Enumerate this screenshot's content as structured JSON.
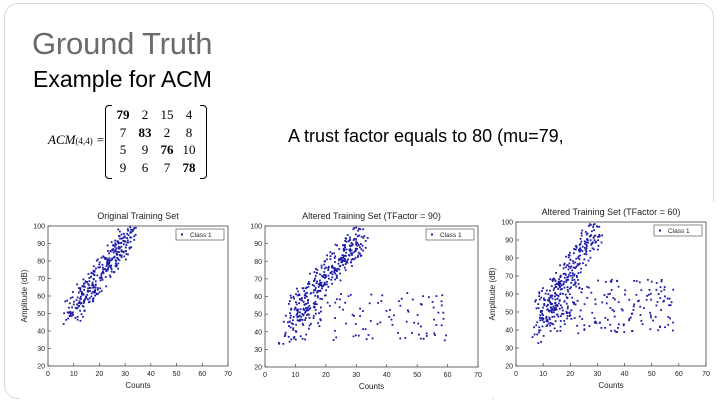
{
  "slide": {
    "title": "Ground Truth",
    "subtitle": "Example for ACM",
    "trust_text": "A trust factor equals to 80 (mu=79,"
  },
  "matrix": {
    "label": "ACM",
    "label_sub": "(4,4)",
    "equals": "=",
    "rows": [
      [
        "79",
        "2",
        "15",
        "4"
      ],
      [
        "7",
        "83",
        "2",
        "8"
      ],
      [
        "5",
        "9",
        "76",
        "10"
      ],
      [
        "9",
        "6",
        "7",
        "78"
      ]
    ]
  },
  "chart_data": [
    {
      "type": "scatter",
      "title": "Original Training Set",
      "xlabel": "Counts",
      "ylabel": "Amplitude (dB)",
      "xlim": [
        0,
        70
      ],
      "ylim": [
        20,
        100
      ],
      "xticks": [
        "0",
        "10",
        "20",
        "30",
        "40",
        "50",
        "60",
        "70"
      ],
      "yticks": [
        "20",
        "30",
        "40",
        "50",
        "60",
        "70",
        "80",
        "90",
        "100"
      ],
      "grid": false,
      "legend": {
        "position": "top-right",
        "entries": [
          "Class 1"
        ]
      },
      "series": [
        {
          "name": "Class 1",
          "color": "#1a1aa6",
          "clusters": [
            {
              "shape": "band",
              "x_range": [
                9,
                32
              ],
              "y_range": [
                50,
                95
              ],
              "count": 330
            }
          ]
        }
      ]
    },
    {
      "type": "scatter",
      "title": "Altered Training Set (TFactor = 90)",
      "xlabel": "Counts",
      "ylabel": "",
      "xlim": [
        0,
        70
      ],
      "ylim": [
        20,
        100
      ],
      "xticks": [
        "0",
        "10",
        "20",
        "30",
        "40",
        "50",
        "60",
        "70"
      ],
      "yticks": [
        "20",
        "30",
        "40",
        "50",
        "60",
        "70",
        "80",
        "90",
        "100"
      ],
      "grid": false,
      "legend": {
        "position": "top-right",
        "entries": [
          "Class 1"
        ]
      },
      "series": [
        {
          "name": "Class 1",
          "color": "#1a1aa6",
          "clusters": [
            {
              "shape": "band",
              "x_range": [
                9,
                32
              ],
              "y_range": [
                50,
                95
              ],
              "count": 330
            },
            {
              "shape": "band",
              "x_range": [
                7,
                18
              ],
              "y_range": [
                36,
                54
              ],
              "count": 60
            },
            {
              "shape": "cloud",
              "x_range": [
                20,
                60
              ],
              "y_range": [
                35,
                62
              ],
              "count": 85
            }
          ]
        }
      ]
    },
    {
      "type": "scatter",
      "title": "Altered Training Set (TFactor = 60)",
      "xlabel": "Counts",
      "ylabel": "Amplitude (dB)",
      "xlim": [
        0,
        70
      ],
      "ylim": [
        20,
        100
      ],
      "xticks": [
        "0",
        "10",
        "20",
        "30",
        "40",
        "50",
        "60",
        "70"
      ],
      "yticks": [
        "20",
        "30",
        "40",
        "50",
        "60",
        "70",
        "80",
        "90",
        "100"
      ],
      "grid": false,
      "legend": {
        "position": "top-right",
        "entries": [
          "Class 1"
        ]
      },
      "series": [
        {
          "name": "Class 1",
          "color": "#1a1aa6",
          "clusters": [
            {
              "shape": "band",
              "x_range": [
                9,
                30
              ],
              "y_range": [
                50,
                95
              ],
              "count": 260
            },
            {
              "shape": "band",
              "x_range": [
                7,
                20
              ],
              "y_range": [
                36,
                56
              ],
              "count": 70
            },
            {
              "shape": "cloud",
              "x_range": [
                10,
                58
              ],
              "y_range": [
                38,
                68
              ],
              "count": 180
            }
          ]
        }
      ]
    }
  ]
}
